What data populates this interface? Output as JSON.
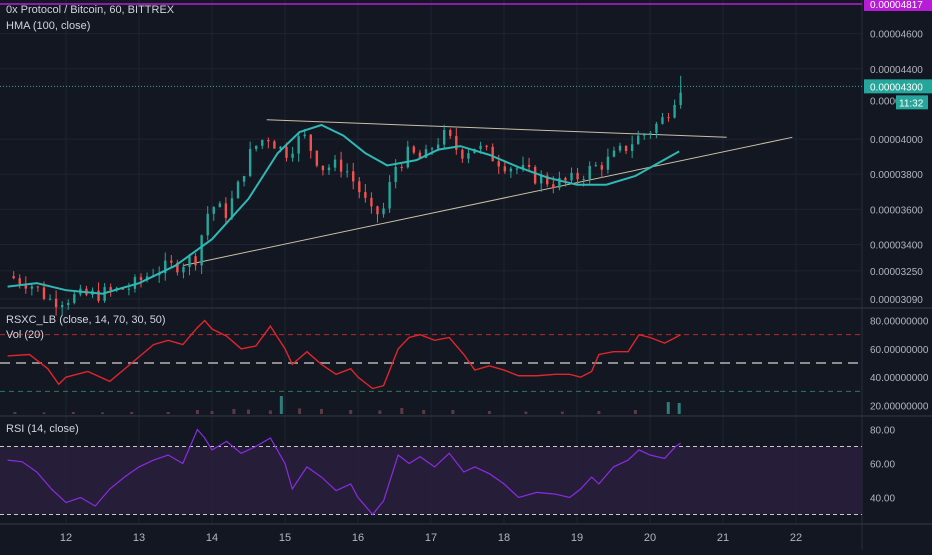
{
  "header": {
    "title": "0x Protocol / Bitcoin, 60, BITTREX",
    "indicator": "HMA (100, close)",
    "top_price_tag": "0.00004817"
  },
  "price_pane": {
    "last_price": "0.00004300",
    "countdown": "11:32",
    "tick_labels": [
      "0.00004600",
      "0.00004400",
      "0.00004000",
      "0.00003800",
      "0.00003600",
      "0.00003400",
      "0.00003250",
      "0.00003090"
    ],
    "hidden_tick_fragment": "0.0000"
  },
  "osc_pane": {
    "title": "RSXC_LB (close, 14, 70, 30, 50)",
    "volume_label": "Vol (20)",
    "tick_labels": [
      "80.00000000",
      "60.00000000",
      "40.00000000",
      "20.00000000"
    ]
  },
  "rsi_pane": {
    "title": "RSI (14, close)",
    "tick_labels": [
      "80.00",
      "60.00",
      "40.00"
    ]
  },
  "x_axis": {
    "labels": [
      "12",
      "13",
      "14",
      "15",
      "16",
      "17",
      "18",
      "19",
      "20",
      "21",
      "22"
    ]
  },
  "colors": {
    "background": "#131722",
    "up": "#26a69a",
    "down": "#ef5350",
    "hma": "#2fb8b4",
    "rsx": "#e0252b",
    "rsi": "#8a2be2",
    "trendline": "#c8bfa5"
  },
  "chart_data": [
    {
      "type": "candlestick",
      "title": "0x Protocol / Bitcoin, 60, BITTREX",
      "x_unit": "day of month",
      "ylim": [
        3.05e-05,
        4.78e-05
      ],
      "last_value": 4.3e-05,
      "close_path": [
        [
          11.2,
          3.22e-05
        ],
        [
          11.5,
          3.18e-05
        ],
        [
          11.8,
          3.08e-05
        ],
        [
          12.1,
          3.1e-05
        ],
        [
          12.5,
          3.12e-05
        ],
        [
          12.9,
          3.16e-05
        ],
        [
          13.2,
          3.25e-05
        ],
        [
          13.5,
          3.28e-05
        ],
        [
          13.8,
          3.33e-05
        ],
        [
          13.9,
          3.55e-05
        ],
        [
          14.0,
          3.62e-05
        ],
        [
          14.2,
          3.58e-05
        ],
        [
          14.35,
          3.72e-05
        ],
        [
          14.5,
          3.9e-05
        ],
        [
          14.6,
          3.96e-05
        ],
        [
          14.75,
          4.02e-05
        ],
        [
          15.0,
          3.92e-05
        ],
        [
          15.25,
          4.02e-05
        ],
        [
          15.5,
          3.84e-05
        ],
        [
          15.8,
          3.85e-05
        ],
        [
          16.0,
          3.72e-05
        ],
        [
          16.2,
          3.56e-05
        ],
        [
          16.35,
          3.6e-05
        ],
        [
          16.5,
          3.84e-05
        ],
        [
          16.7,
          3.92e-05
        ],
        [
          16.9,
          3.88e-05
        ],
        [
          17.05,
          3.98e-05
        ],
        [
          17.2,
          4.02e-05
        ],
        [
          17.4,
          3.92e-05
        ],
        [
          17.6,
          3.96e-05
        ],
        [
          17.8,
          3.91e-05
        ],
        [
          18.0,
          3.86e-05
        ],
        [
          18.2,
          3.83e-05
        ],
        [
          18.45,
          3.78e-05
        ],
        [
          18.7,
          3.75e-05
        ],
        [
          18.9,
          3.76e-05
        ],
        [
          19.15,
          3.82e-05
        ],
        [
          19.4,
          3.87e-05
        ],
        [
          19.6,
          3.93e-05
        ],
        [
          19.8,
          4e-05
        ],
        [
          20.0,
          4.05e-05
        ],
        [
          20.2,
          4.12e-05
        ],
        [
          20.35,
          4.25e-05
        ],
        [
          20.42,
          4.3e-05
        ]
      ],
      "hma_path": [
        [
          11.2,
          3.16e-05
        ],
        [
          11.6,
          3.18e-05
        ],
        [
          12.0,
          3.14e-05
        ],
        [
          12.5,
          3.12e-05
        ],
        [
          13.0,
          3.18e-05
        ],
        [
          13.5,
          3.28e-05
        ],
        [
          14.0,
          3.43e-05
        ],
        [
          14.5,
          3.66e-05
        ],
        [
          14.9,
          3.92e-05
        ],
        [
          15.2,
          4.04e-05
        ],
        [
          15.5,
          4.08e-05
        ],
        [
          15.8,
          4.02e-05
        ],
        [
          16.1,
          3.92e-05
        ],
        [
          16.4,
          3.85e-05
        ],
        [
          16.8,
          3.88e-05
        ],
        [
          17.1,
          3.94e-05
        ],
        [
          17.4,
          3.96e-05
        ],
        [
          17.8,
          3.91e-05
        ],
        [
          18.2,
          3.84e-05
        ],
        [
          18.6,
          3.78e-05
        ],
        [
          19.0,
          3.74e-05
        ],
        [
          19.4,
          3.74e-05
        ],
        [
          19.8,
          3.79e-05
        ],
        [
          20.1,
          3.86e-05
        ],
        [
          20.4,
          3.93e-05
        ]
      ]
    },
    {
      "type": "line",
      "title": "RSXC_LB (close, 14, 70, 30, 50)",
      "ylim": [
        14,
        86
      ],
      "levels": [
        70,
        50,
        30
      ],
      "series": [
        {
          "values": [
            [
              11.2,
              55
            ],
            [
              11.5,
              56
            ],
            [
              11.75,
              46
            ],
            [
              11.9,
              35
            ],
            [
              12.0,
              40
            ],
            [
              12.3,
              44
            ],
            [
              12.6,
              37
            ],
            [
              12.9,
              50
            ],
            [
              13.2,
              63
            ],
            [
              13.4,
              66
            ],
            [
              13.6,
              63
            ],
            [
              13.8,
              75
            ],
            [
              13.9,
              80
            ],
            [
              14.0,
              74
            ],
            [
              14.2,
              69
            ],
            [
              14.4,
              60
            ],
            [
              14.6,
              62
            ],
            [
              14.8,
              76
            ],
            [
              15.0,
              60
            ],
            [
              15.1,
              49
            ],
            [
              15.3,
              58
            ],
            [
              15.5,
              49
            ],
            [
              15.7,
              42
            ],
            [
              15.9,
              46
            ],
            [
              16.0,
              40
            ],
            [
              16.2,
              32
            ],
            [
              16.35,
              34
            ],
            [
              16.55,
              60
            ],
            [
              16.7,
              68
            ],
            [
              16.85,
              70
            ],
            [
              17.05,
              66
            ],
            [
              17.25,
              68
            ],
            [
              17.45,
              56
            ],
            [
              17.6,
              45
            ],
            [
              17.8,
              48
            ],
            [
              18.0,
              45
            ],
            [
              18.2,
              41
            ],
            [
              18.45,
              41
            ],
            [
              18.7,
              42
            ],
            [
              18.9,
              42
            ],
            [
              19.05,
              40
            ],
            [
              19.2,
              44
            ],
            [
              19.3,
              56
            ],
            [
              19.5,
              58
            ],
            [
              19.7,
              58
            ],
            [
              19.85,
              70
            ],
            [
              20.0,
              68
            ],
            [
              20.2,
              64
            ],
            [
              20.35,
              68
            ],
            [
              20.42,
              70
            ]
          ]
        }
      ]
    },
    {
      "type": "bar",
      "title": "Vol (20)",
      "series": [
        {
          "values": [
            [
              11.3,
              0.1
            ],
            [
              11.7,
              0.08
            ],
            [
              12.1,
              0.1
            ],
            [
              12.5,
              0.08
            ],
            [
              12.9,
              0.1
            ],
            [
              13.4,
              0.1
            ],
            [
              13.8,
              0.2
            ],
            [
              14.0,
              0.15
            ],
            [
              14.3,
              0.25
            ],
            [
              14.5,
              0.22
            ],
            [
              14.8,
              0.18
            ],
            [
              14.95,
              0.9
            ],
            [
              15.2,
              0.28
            ],
            [
              15.5,
              0.25
            ],
            [
              15.9,
              0.2
            ],
            [
              16.3,
              0.18
            ],
            [
              16.6,
              0.3
            ],
            [
              16.9,
              0.2
            ],
            [
              17.3,
              0.2
            ],
            [
              17.8,
              0.15
            ],
            [
              18.3,
              0.12
            ],
            [
              18.8,
              0.12
            ],
            [
              19.3,
              0.15
            ],
            [
              19.8,
              0.2
            ],
            [
              20.25,
              0.6
            ],
            [
              20.4,
              0.55
            ]
          ]
        }
      ]
    },
    {
      "type": "line",
      "title": "RSI (14, close)",
      "ylim": [
        25,
        85
      ],
      "levels": [
        70,
        30
      ],
      "series": [
        {
          "values": [
            [
              11.2,
              62
            ],
            [
              11.4,
              61
            ],
            [
              11.6,
              55
            ],
            [
              11.8,
              45
            ],
            [
              12.0,
              37
            ],
            [
              12.2,
              40
            ],
            [
              12.4,
              35
            ],
            [
              12.6,
              45
            ],
            [
              12.8,
              52
            ],
            [
              13.0,
              58
            ],
            [
              13.2,
              62
            ],
            [
              13.4,
              65
            ],
            [
              13.6,
              60
            ],
            [
              13.8,
              80
            ],
            [
              13.9,
              75
            ],
            [
              14.0,
              68
            ],
            [
              14.2,
              73
            ],
            [
              14.4,
              66
            ],
            [
              14.6,
              70
            ],
            [
              14.8,
              75
            ],
            [
              15.0,
              60
            ],
            [
              15.1,
              45
            ],
            [
              15.3,
              58
            ],
            [
              15.5,
              52
            ],
            [
              15.7,
              44
            ],
            [
              15.9,
              48
            ],
            [
              16.0,
              40
            ],
            [
              16.2,
              30
            ],
            [
              16.35,
              38
            ],
            [
              16.55,
              65
            ],
            [
              16.7,
              60
            ],
            [
              16.85,
              64
            ],
            [
              17.05,
              58
            ],
            [
              17.25,
              66
            ],
            [
              17.45,
              55
            ],
            [
              17.6,
              58
            ],
            [
              17.8,
              54
            ],
            [
              18.0,
              48
            ],
            [
              18.2,
              40
            ],
            [
              18.45,
              43
            ],
            [
              18.7,
              42
            ],
            [
              18.9,
              40
            ],
            [
              19.05,
              45
            ],
            [
              19.2,
              52
            ],
            [
              19.3,
              48
            ],
            [
              19.5,
              58
            ],
            [
              19.7,
              62
            ],
            [
              19.85,
              68
            ],
            [
              20.0,
              65
            ],
            [
              20.2,
              63
            ],
            [
              20.35,
              70
            ],
            [
              20.42,
              72
            ]
          ]
        }
      ]
    }
  ]
}
